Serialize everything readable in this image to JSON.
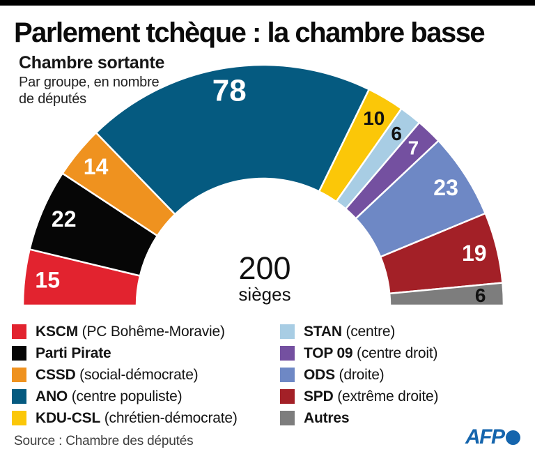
{
  "header": {
    "title": "Parlement tchèque : la chambre basse",
    "subtitle": "Chambre sortante",
    "note_line1": "Par groupe, en nombre",
    "note_line2": "de députés"
  },
  "chart_data": {
    "type": "pie",
    "variant": "semicircle-donut-hemicycle",
    "title": "Chambre sortante",
    "subtitle": "Par groupe, en nombre de députés",
    "total_seats": 200,
    "center_label": "200",
    "center_sublabel": "sièges",
    "legend_split": 5,
    "legend_position": "bottom-two-columns",
    "series": [
      {
        "name": "KSCM",
        "legend_desc": "(PC Bohême-Moravie)",
        "value": 15,
        "color": "#e2232f",
        "text_color": "#ffffff"
      },
      {
        "name": "Parti Pirate",
        "legend_desc": "",
        "value": 22,
        "color": "#060606",
        "text_color": "#ffffff"
      },
      {
        "name": "CSSD",
        "legend_desc": "(social-démocrate)",
        "value": 14,
        "color": "#ef921f",
        "text_color": "#ffffff"
      },
      {
        "name": "ANO",
        "legend_desc": "(centre populiste)",
        "value": 78,
        "color": "#055a80",
        "text_color": "#ffffff"
      },
      {
        "name": "KDU-CSL",
        "legend_desc": "(chrétien-démocrate)",
        "value": 10,
        "color": "#fbc708",
        "text_color": "#111111"
      },
      {
        "name": "STAN",
        "legend_desc": "(centre)",
        "value": 6,
        "color": "#a8cde4",
        "text_color": "#111111"
      },
      {
        "name": "TOP 09",
        "legend_desc": "(centre droit)",
        "value": 7,
        "color": "#7450a0",
        "text_color": "#ffffff"
      },
      {
        "name": "ODS",
        "legend_desc": "(droite)",
        "value": 23,
        "color": "#6e88c5",
        "text_color": "#ffffff"
      },
      {
        "name": "SPD",
        "legend_desc": "(extrême droite)",
        "value": 19,
        "color": "#a32027",
        "text_color": "#ffffff"
      },
      {
        "name": "Autres",
        "legend_desc": "",
        "value": 6,
        "color": "#7d7d7d",
        "text_color": "#111111"
      }
    ]
  },
  "footer": {
    "source": "Source : Chambre des députés",
    "afp_label": "AFP"
  },
  "colors": {
    "afp_blue": "#1565ad",
    "top_bar": "#000000",
    "background": "#ffffff"
  }
}
